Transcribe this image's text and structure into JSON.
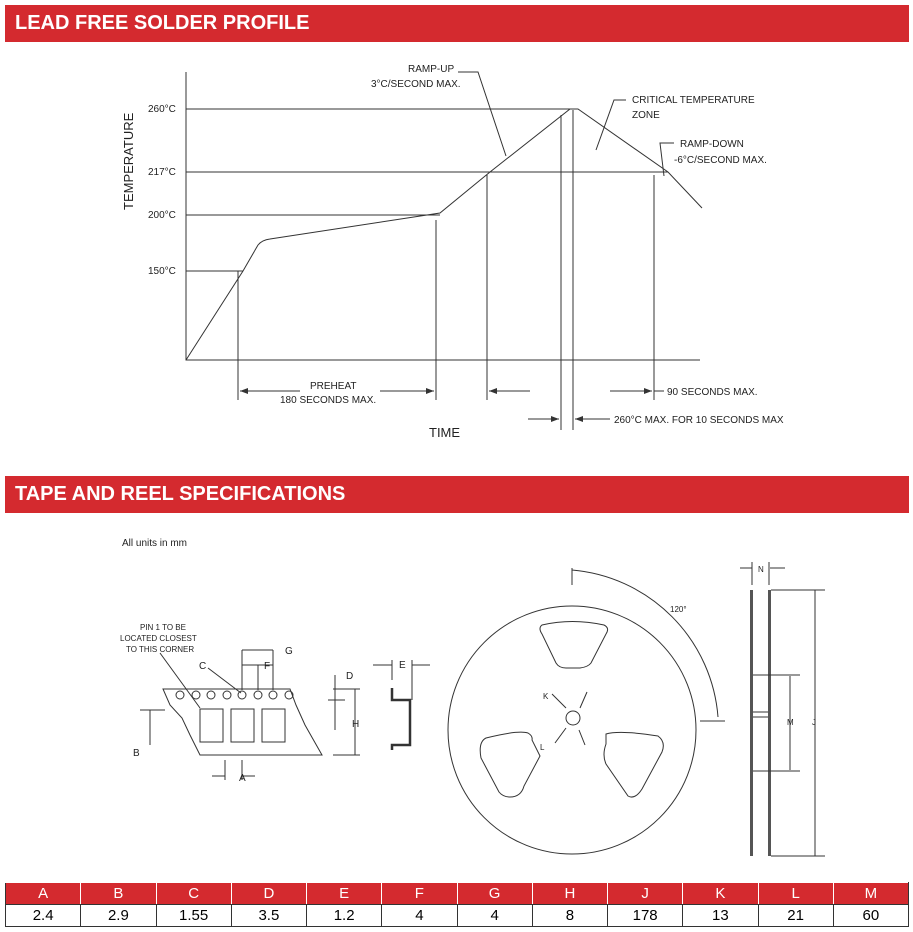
{
  "sections": {
    "profile_title": "LEAD FREE SOLDER PROFILE",
    "tape_title": "TAPE AND REEL SPECIFICATIONS"
  },
  "profile": {
    "y_axis_label": "TEMPERATURE",
    "x_axis_label": "TIME",
    "temps": [
      "260°C",
      "217°C",
      "200°C",
      "150°C"
    ],
    "ramp_up": [
      "RAMP-UP",
      "3°C/SECOND MAX."
    ],
    "critical": [
      "CRITICAL TEMPERATURE",
      "ZONE"
    ],
    "ramp_down": [
      "RAMP-DOWN",
      "-6°C/SECOND MAX."
    ],
    "preheat": [
      "PREHEAT",
      "180 SECONDS MAX."
    ],
    "ninety": "90 SECONDS MAX.",
    "peak": "260°C MAX. FOR 10 SECONDS MAX"
  },
  "tape": {
    "units_note": "All units in mm",
    "pin1_note": [
      "PIN 1 TO BE",
      "LOCATED CLOSEST",
      "TO THIS CORNER"
    ],
    "angle": "120°",
    "labels": {
      "A": "A",
      "B": "B",
      "C": "C",
      "D": "D",
      "E": "E",
      "F": "F",
      "G": "G",
      "H": "H",
      "J": "J",
      "K": "K",
      "L": "L",
      "M": "M",
      "N": "N"
    }
  },
  "spec_table": {
    "headers": [
      "A",
      "B",
      "C",
      "D",
      "E",
      "F",
      "G",
      "H",
      "J",
      "K",
      "L",
      "M"
    ],
    "values": [
      "2.4",
      "2.9",
      "1.55",
      "3.5",
      "1.2",
      "4",
      "4",
      "8",
      "178",
      "13",
      "21",
      "60"
    ]
  },
  "colors": {
    "accent": "#d42a2f"
  }
}
